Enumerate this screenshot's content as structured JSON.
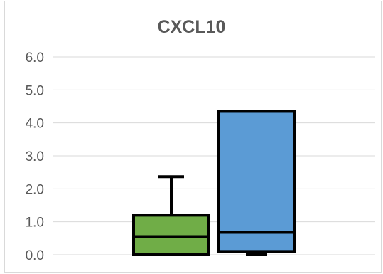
{
  "chart_data": {
    "type": "box",
    "title": "CXCL10",
    "xlabel": "",
    "ylabel": "",
    "ylim": [
      0,
      6
    ],
    "yticks": [
      "0.0",
      "1.0",
      "2.0",
      "3.0",
      "4.0",
      "5.0",
      "6.0"
    ],
    "grid": true,
    "series": [
      {
        "color": "#70ad47",
        "whisker_low": 0.0,
        "q1": 0.0,
        "median": 0.55,
        "q3": 1.2,
        "whisker_high": 2.37
      },
      {
        "color": "#5b9bd5",
        "whisker_low": 0.0,
        "q1": 0.1,
        "median": 0.68,
        "q3": 4.35,
        "whisker_high": 4.35
      }
    ]
  }
}
